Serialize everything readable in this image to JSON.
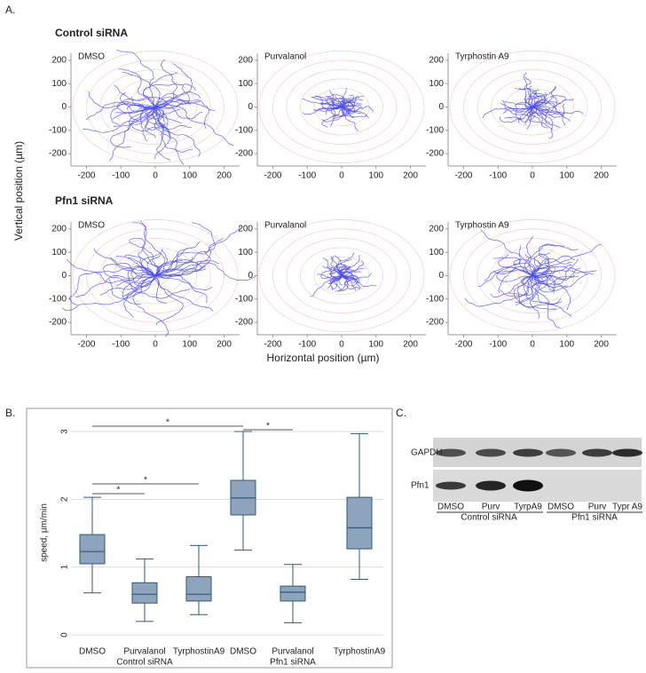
{
  "panel_a": {
    "label": "A.",
    "rows": [
      "Control siRNA",
      "Pfn1 siRNA"
    ],
    "y_label": "Vertical position (µm)",
    "x_label": "Horizontal position (µm)"
  },
  "chart_data": [
    {
      "type": "tracks",
      "title": "DMSO",
      "xlim": [
        -245,
        245
      ],
      "ylim": [
        -230,
        230
      ],
      "xticks": [
        -200,
        -100,
        0,
        100,
        200
      ],
      "yticks": [
        -200,
        -100,
        0,
        100,
        200
      ],
      "color": "#4a4af0"
    },
    {
      "type": "tracks",
      "title": "Purvalanol",
      "xlim": [
        -245,
        245
      ],
      "ylim": [
        -230,
        230
      ],
      "xticks": [
        -200,
        -100,
        0,
        100,
        200
      ],
      "yticks": [
        -200,
        -100,
        0,
        100,
        200
      ],
      "color": "#4a4af0"
    },
    {
      "type": "tracks",
      "title": "Tyrphostin A9",
      "xlim": [
        -245,
        245
      ],
      "ylim": [
        -230,
        230
      ],
      "xticks": [
        -200,
        -100,
        0,
        100,
        200
      ],
      "yticks": [
        -200,
        -100,
        0,
        100,
        200
      ],
      "color": "#4a4af0"
    },
    {
      "type": "tracks",
      "title": "DMSO",
      "xlim": [
        -245,
        245
      ],
      "ylim": [
        -230,
        230
      ],
      "xticks": [
        -200,
        -100,
        0,
        100,
        200
      ],
      "yticks": [
        -200,
        -100,
        0,
        100,
        200
      ],
      "color": "#4a4af0"
    },
    {
      "type": "tracks",
      "title": "Purvalanol",
      "xlim": [
        -245,
        245
      ],
      "ylim": [
        -230,
        230
      ],
      "xticks": [
        -200,
        -100,
        0,
        100,
        200
      ],
      "yticks": [
        -200,
        -100,
        0,
        100,
        200
      ],
      "color": "#4a4af0"
    },
    {
      "type": "tracks",
      "title": "Tyrphostin A9",
      "xlim": [
        -245,
        245
      ],
      "ylim": [
        -230,
        230
      ],
      "xticks": [
        -200,
        -100,
        0,
        100,
        200
      ],
      "yticks": [
        -200,
        -100,
        0,
        100,
        200
      ],
      "color": "#4a4af0"
    },
    {
      "type": "box",
      "y_label": "speed, µm/min",
      "categories": [
        "DMSO",
        "Purvalanol",
        "TyrphostinA9",
        "DMSO",
        "Purvalanol",
        "TyrphostinA9"
      ],
      "groups": [
        "Control siRNA",
        "Pfn1 siRNA"
      ],
      "values": [
        [
          0.62,
          1.05,
          1.23,
          1.48,
          2.03
        ],
        [
          0.2,
          0.47,
          0.6,
          0.77,
          1.12
        ],
        [
          0.3,
          0.5,
          0.6,
          0.86,
          1.32
        ],
        [
          1.25,
          1.77,
          2.02,
          2.28,
          3.0
        ],
        [
          0.18,
          0.5,
          0.63,
          0.72,
          1.04
        ],
        [
          0.82,
          1.27,
          1.58,
          2.03,
          2.97
        ]
      ],
      "ylim": [
        -0.09,
        3.21
      ],
      "yticks": [
        0,
        1,
        2,
        3
      ],
      "grid": true,
      "color": "#8da4bc",
      "annotations": [
        "*",
        "*",
        "*",
        "*"
      ]
    }
  ],
  "panel_b": {
    "label": "B."
  },
  "panel_c": {
    "label": "C.",
    "rows": [
      "GAPDH",
      "Pfn1"
    ],
    "lanes": [
      "DMSO",
      "Purv",
      "TyrpA9",
      "DMSO",
      "Purv",
      "Typr A9"
    ],
    "groups": [
      "Control siRNA",
      "Pfn1 siRNA"
    ]
  }
}
